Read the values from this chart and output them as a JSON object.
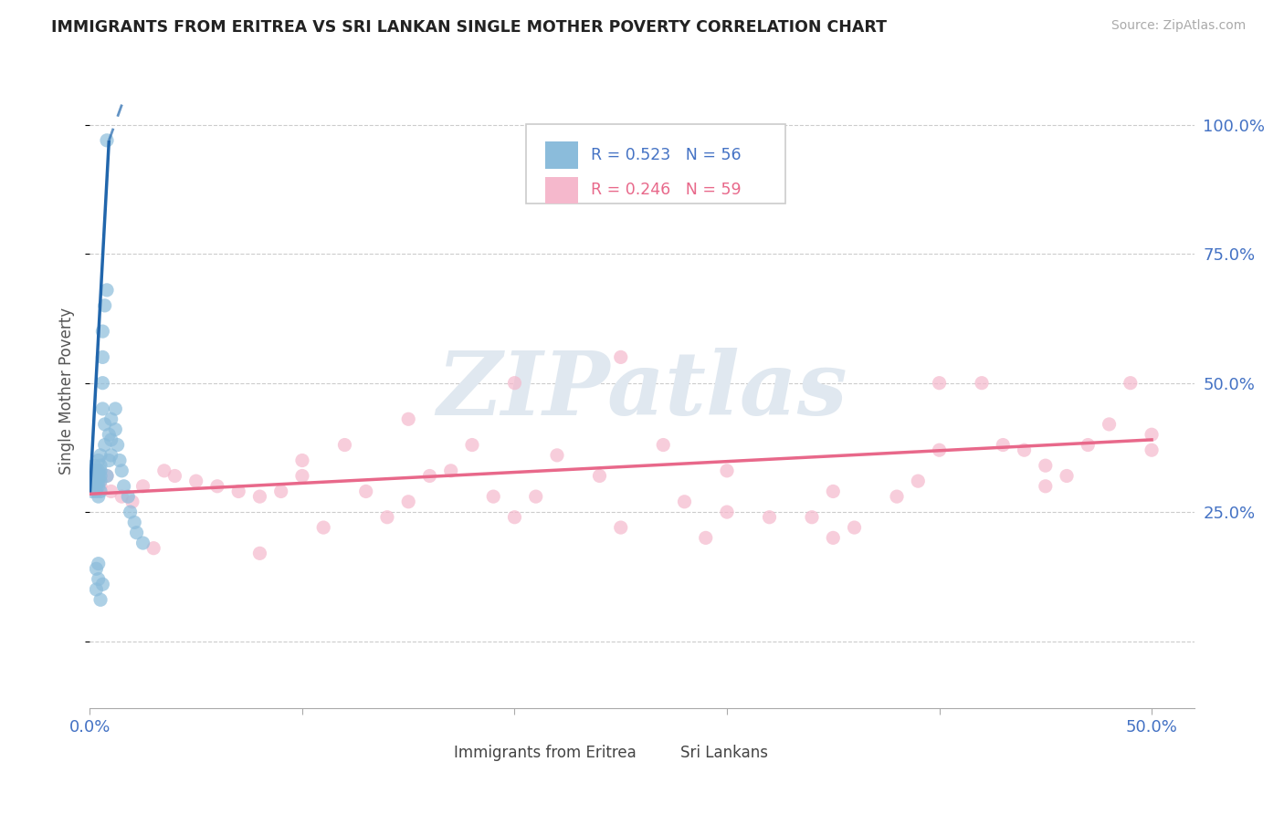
{
  "title": "IMMIGRANTS FROM ERITREA VS SRI LANKAN SINGLE MOTHER POVERTY CORRELATION CHART",
  "source": "Source: ZipAtlas.com",
  "ylabel": "Single Mother Poverty",
  "xlim": [
    0.0,
    0.52
  ],
  "ylim": [
    -0.13,
    1.1
  ],
  "ytick_positions": [
    0.0,
    0.25,
    0.5,
    0.75,
    1.0
  ],
  "ytick_labels": [
    "",
    "25.0%",
    "50.0%",
    "75.0%",
    "100.0%"
  ],
  "xtick_positions": [
    0.0,
    0.1,
    0.2,
    0.3,
    0.4,
    0.5
  ],
  "xtick_labels": [
    "0.0%",
    "",
    "",
    "",
    "",
    "50.0%"
  ],
  "legend_blue_text_R": "R = 0.523",
  "legend_blue_text_N": "N = 56",
  "legend_pink_text_R": "R = 0.246",
  "legend_pink_text_N": "N = 59",
  "legend_label_blue": "Immigrants from Eritrea",
  "legend_label_pink": "Sri Lankans",
  "blue_scatter_color": "#8bbcdb",
  "pink_scatter_color": "#f5b8cc",
  "blue_line_color": "#2166ac",
  "pink_line_color": "#e8688a",
  "tick_color": "#4472C4",
  "watermark_text": "ZIPatlas",
  "watermark_color": "#e0e8f0",
  "grid_color": "#cccccc",
  "blue_x": [
    0.001,
    0.001,
    0.001,
    0.002,
    0.002,
    0.002,
    0.002,
    0.003,
    0.003,
    0.003,
    0.003,
    0.003,
    0.004,
    0.004,
    0.004,
    0.004,
    0.004,
    0.004,
    0.005,
    0.005,
    0.005,
    0.005,
    0.005,
    0.005,
    0.006,
    0.006,
    0.006,
    0.006,
    0.007,
    0.007,
    0.007,
    0.008,
    0.008,
    0.008,
    0.009,
    0.009,
    0.01,
    0.01,
    0.01,
    0.012,
    0.012,
    0.013,
    0.014,
    0.015,
    0.016,
    0.018,
    0.019,
    0.021,
    0.022,
    0.025,
    0.003,
    0.004,
    0.005,
    0.006,
    0.003,
    0.004
  ],
  "blue_y": [
    0.31,
    0.33,
    0.29,
    0.34,
    0.31,
    0.32,
    0.3,
    0.33,
    0.3,
    0.32,
    0.31,
    0.29,
    0.35,
    0.32,
    0.33,
    0.3,
    0.31,
    0.28,
    0.36,
    0.33,
    0.32,
    0.31,
    0.34,
    0.29,
    0.55,
    0.5,
    0.45,
    0.6,
    0.42,
    0.65,
    0.38,
    0.97,
    0.68,
    0.32,
    0.4,
    0.35,
    0.43,
    0.39,
    0.36,
    0.45,
    0.41,
    0.38,
    0.35,
    0.33,
    0.3,
    0.28,
    0.25,
    0.23,
    0.21,
    0.19,
    0.1,
    0.12,
    0.08,
    0.11,
    0.14,
    0.15
  ],
  "pink_x": [
    0.005,
    0.008,
    0.01,
    0.015,
    0.02,
    0.025,
    0.03,
    0.035,
    0.04,
    0.05,
    0.06,
    0.07,
    0.08,
    0.09,
    0.1,
    0.11,
    0.12,
    0.13,
    0.14,
    0.15,
    0.16,
    0.17,
    0.18,
    0.19,
    0.2,
    0.21,
    0.22,
    0.24,
    0.25,
    0.27,
    0.28,
    0.29,
    0.3,
    0.32,
    0.34,
    0.35,
    0.36,
    0.38,
    0.39,
    0.4,
    0.42,
    0.43,
    0.44,
    0.45,
    0.46,
    0.47,
    0.48,
    0.49,
    0.5,
    0.5,
    0.15,
    0.2,
    0.25,
    0.3,
    0.35,
    0.4,
    0.45,
    0.1,
    0.08
  ],
  "pink_y": [
    0.3,
    0.32,
    0.29,
    0.28,
    0.27,
    0.3,
    0.18,
    0.33,
    0.32,
    0.31,
    0.3,
    0.29,
    0.28,
    0.29,
    0.35,
    0.22,
    0.38,
    0.29,
    0.24,
    0.43,
    0.32,
    0.33,
    0.38,
    0.28,
    0.5,
    0.28,
    0.36,
    0.32,
    0.55,
    0.38,
    0.27,
    0.2,
    0.33,
    0.24,
    0.24,
    0.29,
    0.22,
    0.28,
    0.31,
    0.5,
    0.5,
    0.38,
    0.37,
    0.34,
    0.32,
    0.38,
    0.42,
    0.5,
    0.4,
    0.37,
    0.27,
    0.24,
    0.22,
    0.25,
    0.2,
    0.37,
    0.3,
    0.32,
    0.17
  ],
  "blue_line_x0": 0.0,
  "blue_line_y0": 0.285,
  "blue_line_x1": 0.009,
  "blue_line_y1": 0.97,
  "blue_line_xdash0": 0.009,
  "blue_line_ydash0": 0.97,
  "blue_line_xdash1": 0.016,
  "blue_line_ydash1": 1.05,
  "pink_line_x0": 0.0,
  "pink_line_y0": 0.285,
  "pink_line_x1": 0.5,
  "pink_line_y1": 0.39
}
